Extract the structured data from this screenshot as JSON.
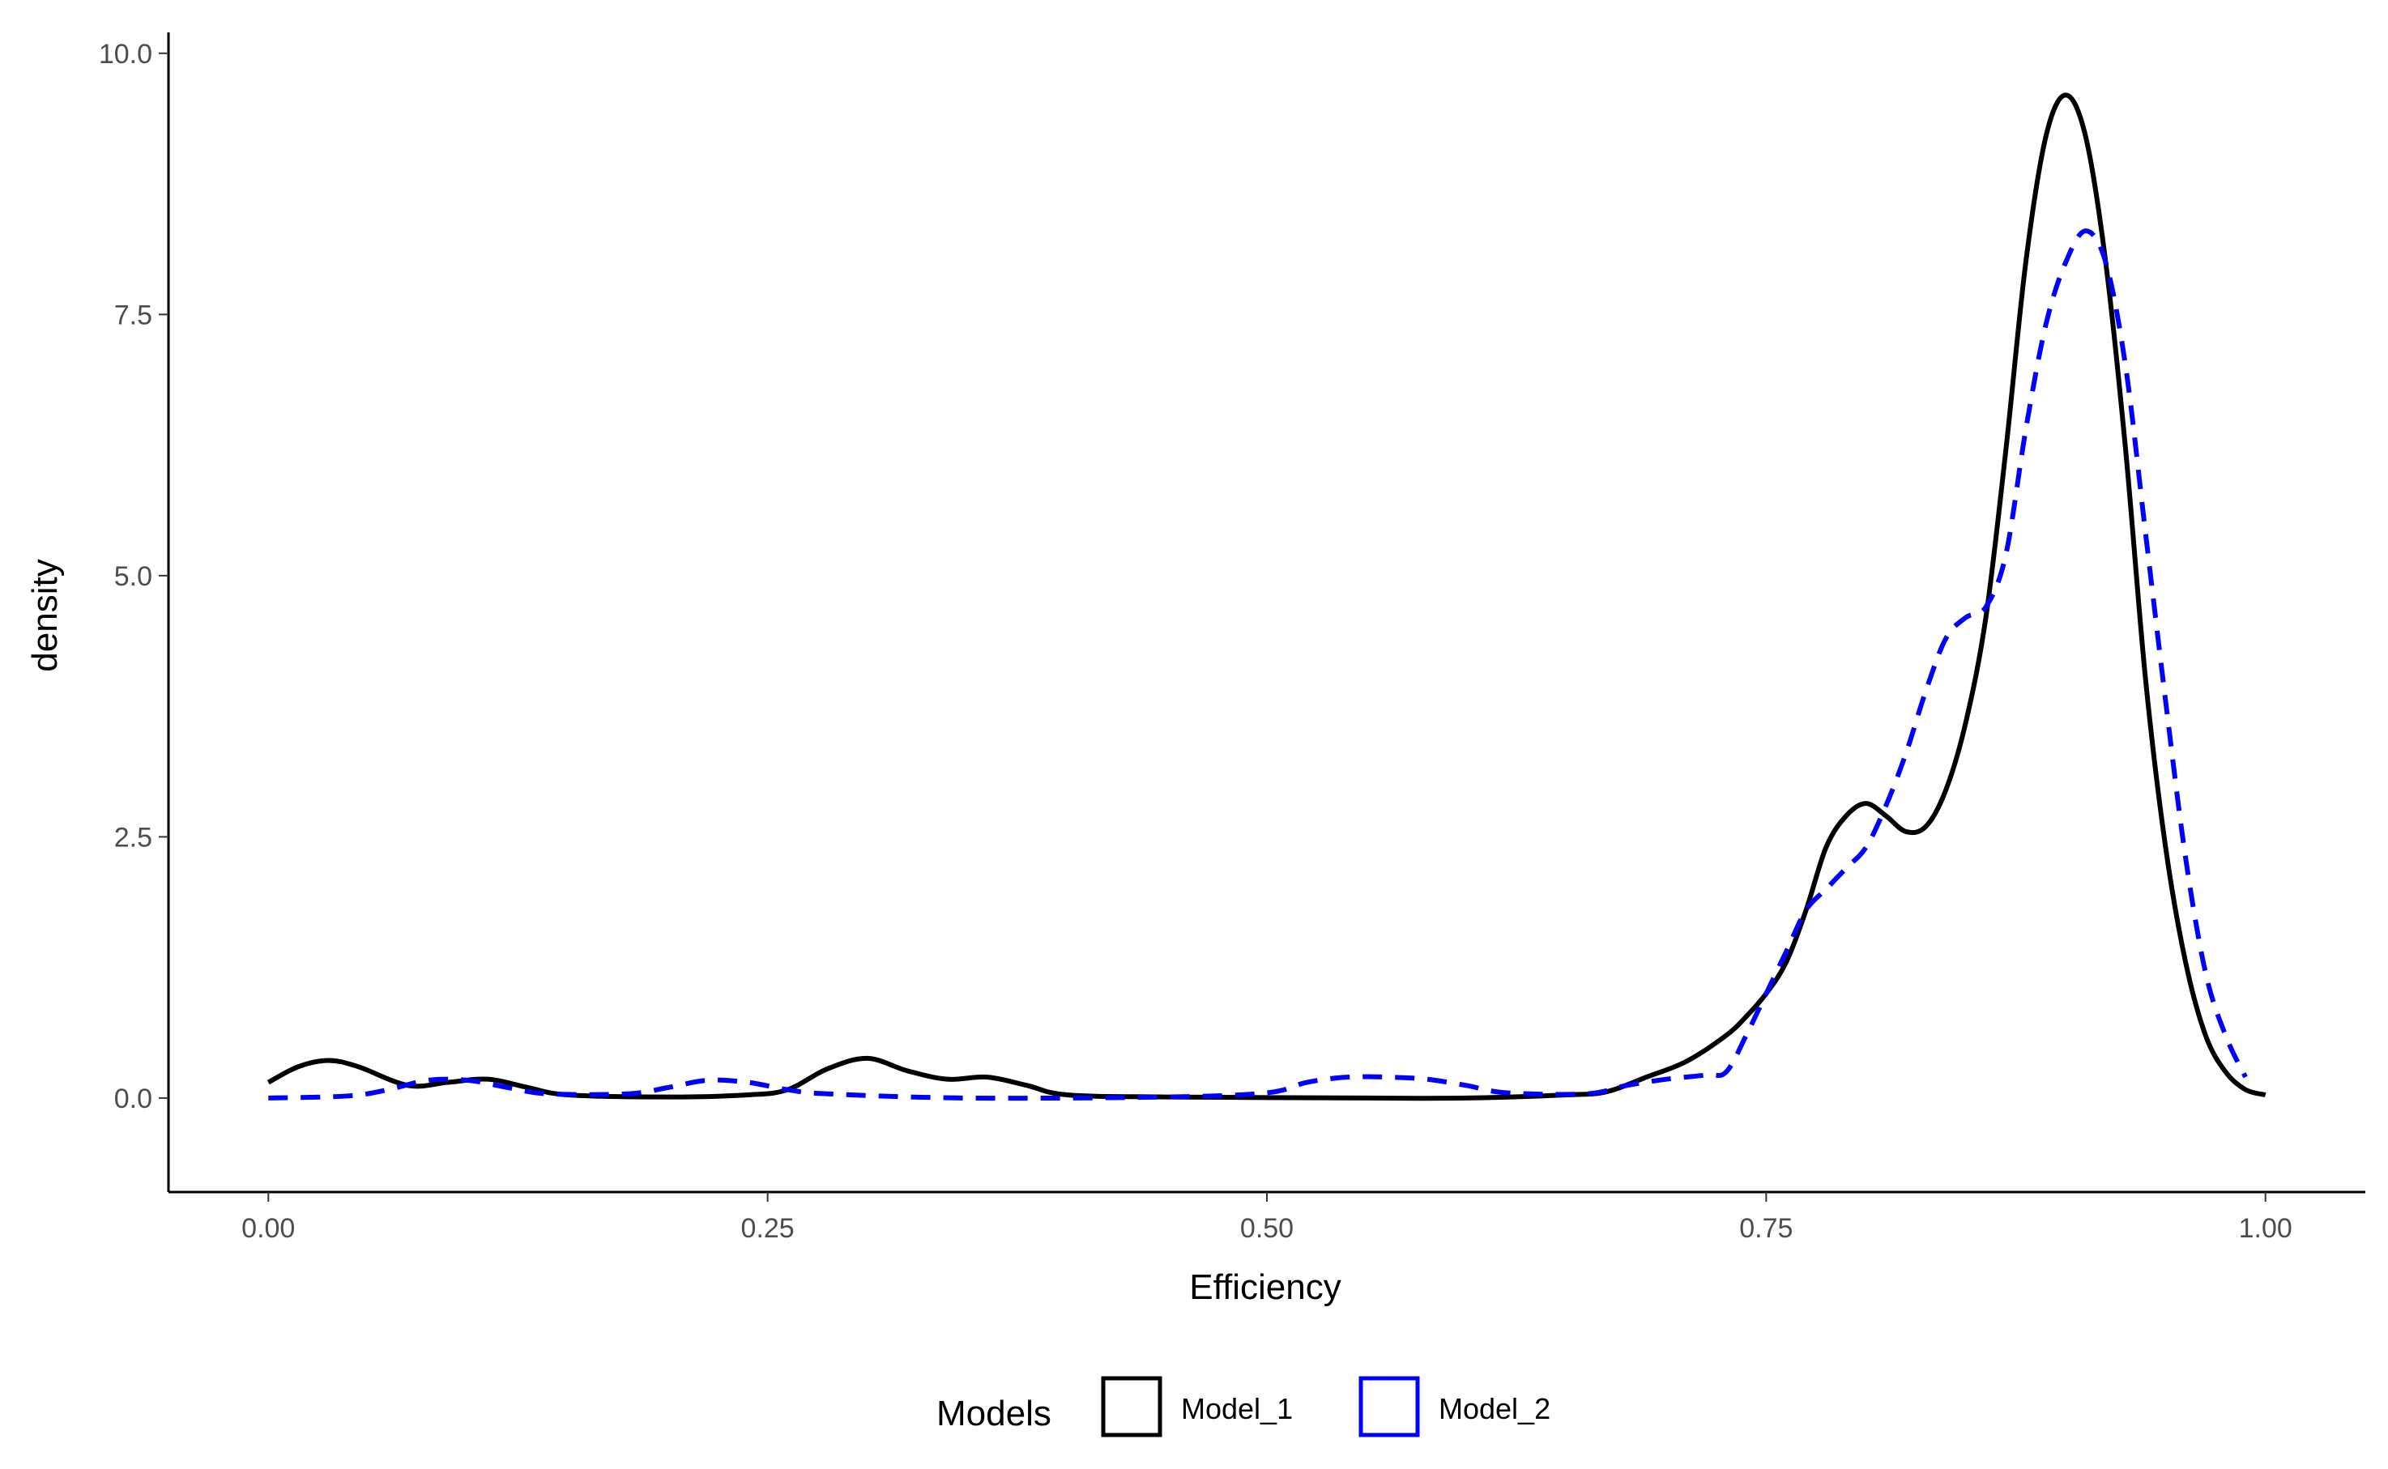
{
  "chart_data": {
    "type": "line",
    "title": "",
    "xlabel": "Efficiency",
    "ylabel": "density",
    "xlim": [
      -0.05,
      1.05
    ],
    "ylim": [
      -0.9,
      10.2
    ],
    "x_ticks": [
      0,
      0.25,
      0.5,
      0.75,
      1.0
    ],
    "x_tick_labels": [
      "0.00",
      "0.25",
      "0.50",
      "0.75",
      "1.00"
    ],
    "y_ticks": [
      0,
      2.5,
      5.0,
      7.5,
      10.0
    ],
    "y_tick_labels": [
      "0.0",
      "2.5",
      "5.0",
      "7.5",
      "10.0"
    ],
    "grid": false,
    "legend": {
      "title": "Models",
      "position": "bottom"
    },
    "series": [
      {
        "name": "Model_1",
        "color": "#000000",
        "line_style": "solid",
        "points": [
          [
            0.0,
            0.15
          ],
          [
            0.015,
            0.3
          ],
          [
            0.03,
            0.36
          ],
          [
            0.045,
            0.3
          ],
          [
            0.07,
            0.12
          ],
          [
            0.09,
            0.15
          ],
          [
            0.11,
            0.18
          ],
          [
            0.13,
            0.1
          ],
          [
            0.15,
            0.03
          ],
          [
            0.2,
            0.01
          ],
          [
            0.24,
            0.03
          ],
          [
            0.26,
            0.08
          ],
          [
            0.28,
            0.28
          ],
          [
            0.3,
            0.38
          ],
          [
            0.32,
            0.26
          ],
          [
            0.34,
            0.18
          ],
          [
            0.36,
            0.2
          ],
          [
            0.38,
            0.12
          ],
          [
            0.4,
            0.03
          ],
          [
            0.45,
            0.01
          ],
          [
            0.55,
            0.0
          ],
          [
            0.6,
            0.0
          ],
          [
            0.65,
            0.03
          ],
          [
            0.67,
            0.06
          ],
          [
            0.69,
            0.2
          ],
          [
            0.71,
            0.35
          ],
          [
            0.73,
            0.6
          ],
          [
            0.74,
            0.78
          ],
          [
            0.75,
            1.0
          ],
          [
            0.76,
            1.3
          ],
          [
            0.77,
            1.8
          ],
          [
            0.78,
            2.4
          ],
          [
            0.79,
            2.7
          ],
          [
            0.8,
            2.82
          ],
          [
            0.81,
            2.7
          ],
          [
            0.82,
            2.55
          ],
          [
            0.83,
            2.6
          ],
          [
            0.84,
            2.95
          ],
          [
            0.85,
            3.6
          ],
          [
            0.86,
            4.6
          ],
          [
            0.87,
            6.2
          ],
          [
            0.88,
            8.0
          ],
          [
            0.89,
            9.2
          ],
          [
            0.9,
            9.6
          ],
          [
            0.91,
            9.2
          ],
          [
            0.92,
            8.0
          ],
          [
            0.93,
            6.2
          ],
          [
            0.94,
            4.0
          ],
          [
            0.95,
            2.4
          ],
          [
            0.96,
            1.3
          ],
          [
            0.97,
            0.6
          ],
          [
            0.98,
            0.25
          ],
          [
            0.99,
            0.08
          ],
          [
            1.0,
            0.03
          ]
        ]
      },
      {
        "name": "Model_2",
        "color": "#0000ff",
        "line_style": "dashed",
        "points": [
          [
            0.0,
            0.0
          ],
          [
            0.04,
            0.02
          ],
          [
            0.06,
            0.08
          ],
          [
            0.08,
            0.17
          ],
          [
            0.1,
            0.17
          ],
          [
            0.12,
            0.1
          ],
          [
            0.14,
            0.04
          ],
          [
            0.18,
            0.04
          ],
          [
            0.2,
            0.1
          ],
          [
            0.22,
            0.17
          ],
          [
            0.24,
            0.15
          ],
          [
            0.26,
            0.08
          ],
          [
            0.28,
            0.04
          ],
          [
            0.35,
            0.0
          ],
          [
            0.45,
            0.01
          ],
          [
            0.5,
            0.05
          ],
          [
            0.52,
            0.15
          ],
          [
            0.54,
            0.2
          ],
          [
            0.56,
            0.2
          ],
          [
            0.58,
            0.18
          ],
          [
            0.6,
            0.12
          ],
          [
            0.62,
            0.05
          ],
          [
            0.66,
            0.04
          ],
          [
            0.68,
            0.12
          ],
          [
            0.7,
            0.18
          ],
          [
            0.72,
            0.22
          ],
          [
            0.73,
            0.25
          ],
          [
            0.74,
            0.6
          ],
          [
            0.75,
            1.0
          ],
          [
            0.76,
            1.4
          ],
          [
            0.77,
            1.8
          ],
          [
            0.78,
            2.0
          ],
          [
            0.79,
            2.2
          ],
          [
            0.8,
            2.4
          ],
          [
            0.81,
            2.8
          ],
          [
            0.82,
            3.3
          ],
          [
            0.83,
            3.9
          ],
          [
            0.84,
            4.4
          ],
          [
            0.85,
            4.6
          ],
          [
            0.86,
            4.7
          ],
          [
            0.87,
            5.2
          ],
          [
            0.88,
            6.4
          ],
          [
            0.89,
            7.4
          ],
          [
            0.9,
            8.0
          ],
          [
            0.91,
            8.3
          ],
          [
            0.92,
            8.0
          ],
          [
            0.93,
            7.0
          ],
          [
            0.94,
            5.4
          ],
          [
            0.95,
            3.8
          ],
          [
            0.96,
            2.3
          ],
          [
            0.97,
            1.2
          ],
          [
            0.98,
            0.6
          ],
          [
            0.99,
            0.2
          ]
        ]
      }
    ]
  }
}
